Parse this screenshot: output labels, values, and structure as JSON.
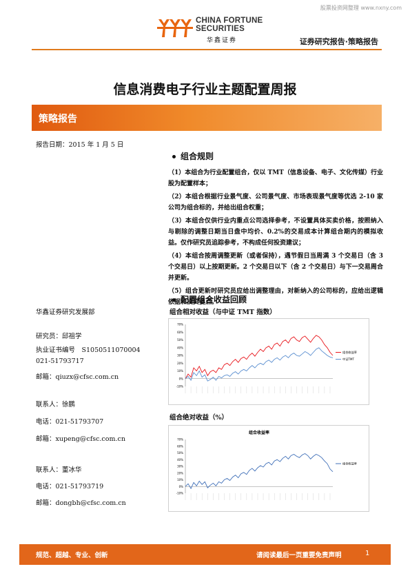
{
  "watermark": "股票投资网整理 www.nxny.com",
  "header": {
    "logo_en_line1": "CHINA FORTUNE",
    "logo_en_line2": "SECURITIES",
    "logo_cn": "华鑫证券",
    "report_type": "证券研究报告·策略报告",
    "accent_color": "#e07a1c"
  },
  "title": "信息消费电子行业主题配置周报",
  "banner": {
    "label": "策略报告"
  },
  "report_date": "报告日期：2015 年 1 月 5 日",
  "rules": {
    "heading": "组合规则",
    "items": [
      "（1）本组合为行业配置组合，仅以 TMT（信息设备、电子、文化传媒）行业股为配置样本；",
      "（2）本组合根据行业景气度、公司景气度、市场表现景气度等优选 2-10 家公司为组合标的，并给出组合权重；",
      "（3）本组合仅供行业内重点公司选择参考，不设置具体买卖价格，按照纳入与剔除的调整日期当日盘中均价、0.2%的交易成本计算组合期内的模拟收益。仅作研究员追踪参考，不构成任何投资建议；",
      "（4）本组合按周调整更新（或者保持），遇节假日当周满 3 个交易日（含 3 个交易日）以上按期更新。2 个交易日以下（含 2 个交易日）与下一交易周合并更新。",
      "（5）组合更新时研究员应给出调整理由，对新纳入的公司标的，应给出逻辑依据和投资要点。"
    ]
  },
  "review": {
    "heading": "配置组合收益回顾",
    "chart1_caption": "组合相对收益（与中证 TMT 指数）",
    "chart2_caption": "组合绝对收益（%）"
  },
  "left_info": {
    "org": "华鑫证券研究发展部",
    "analyst": "研究员：邱祖学",
    "license": "执业证书编号　S1050511070004",
    "phone1": "021-51793717",
    "email1": "邮箱：qiuzx@cfsc.com.cn",
    "contact2": "联系人：徐鹏",
    "phone2": "电话：021-51793707",
    "email2": "邮箱：xupeng@cfsc.com.cn",
    "contact3": "联系人：董冰华",
    "phone3": "电话：021-51793719",
    "email3": "邮箱：dongbh@cfsc.com.cn"
  },
  "footer": {
    "left": "规范、超越、专业、创新",
    "right": "请阅读最后一页重要免责声明",
    "page": "1",
    "bar_color": "#e2661a"
  },
  "chart_data": [
    {
      "type": "line",
      "title": "",
      "ylim": [
        -10,
        70
      ],
      "yticks": [
        "-10%",
        "0%",
        "10%",
        "20%",
        "30%",
        "40%",
        "50%",
        "60%",
        "70%"
      ],
      "series": [
        {
          "name": "组合收益率",
          "color": "#e8151b",
          "values": [
            0,
            6,
            2,
            14,
            10,
            16,
            8,
            12,
            4,
            9,
            11,
            8,
            14,
            12,
            18,
            20,
            17,
            22,
            25,
            21,
            26,
            28,
            25,
            30,
            33,
            29,
            34,
            38,
            35,
            40,
            42,
            38,
            44,
            46,
            42,
            48,
            50,
            46,
            52,
            54,
            50,
            48,
            53,
            55,
            51,
            47,
            52,
            56,
            54,
            50,
            44,
            40,
            34,
            30
          ]
        },
        {
          "name": "中证TMT",
          "color": "#5b8fd0",
          "values": [
            0,
            3,
            -2,
            8,
            4,
            10,
            2,
            5,
            -3,
            -1,
            2,
            -2,
            3,
            1,
            4,
            5,
            3,
            7,
            9,
            6,
            10,
            12,
            10,
            14,
            17,
            14,
            18,
            20,
            18,
            22,
            24,
            21,
            25,
            27,
            24,
            28,
            30,
            27,
            31,
            33,
            30,
            29,
            32,
            35,
            33,
            30,
            34,
            38,
            40,
            36,
            33,
            30,
            28,
            27
          ]
        }
      ]
    },
    {
      "type": "line",
      "title": "组合收益率",
      "ylim": [
        -10,
        70
      ],
      "yticks": [
        "-10%",
        "0%",
        "10%",
        "20%",
        "30%",
        "40%",
        "50%",
        "60%",
        "70%"
      ],
      "series": [
        {
          "name": "组合收益率",
          "color": "#3f6fb8",
          "values": [
            0,
            4,
            -3,
            6,
            1,
            8,
            3,
            7,
            -2,
            2,
            5,
            1,
            7,
            5,
            10,
            12,
            9,
            14,
            17,
            13,
            19,
            21,
            18,
            24,
            27,
            23,
            28,
            31,
            29,
            34,
            36,
            32,
            38,
            40,
            37,
            42,
            45,
            41,
            46,
            48,
            45,
            43,
            47,
            49,
            46,
            41,
            45,
            48,
            46,
            43,
            38,
            34,
            26,
            22
          ]
        }
      ]
    }
  ]
}
